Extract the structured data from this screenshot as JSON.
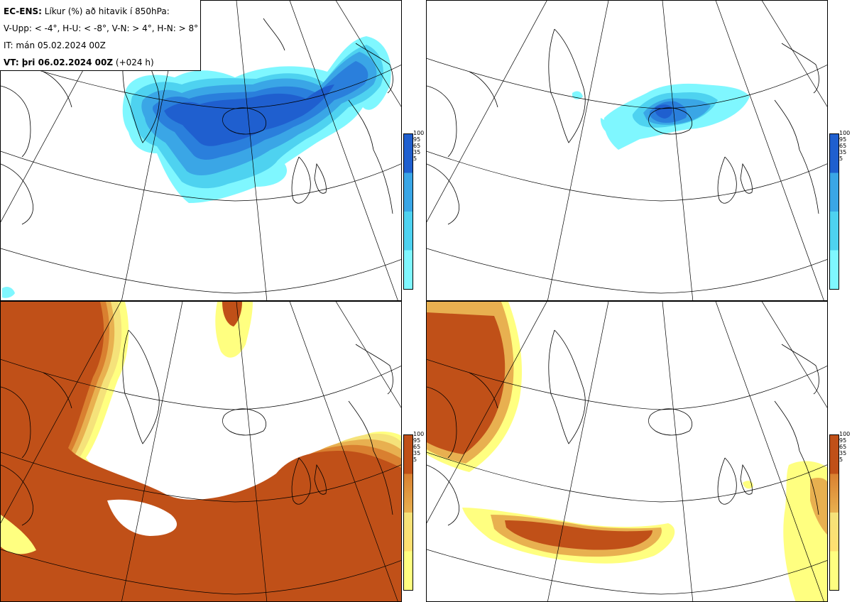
{
  "header": {
    "line1_bold": "EC-ENS:",
    "line1_rest": " Líkur (%) að hitavik í 850hPa:",
    "line2": "V-Upp: < -4°, H-U: < -8°, V-N: > 4°, H-N: > 8°",
    "line3": "IT: mán 05.02.2024 00Z",
    "line4_bold": "VT: þri 06.02.2024 00Z",
    "line4_rest": " (+024 h)"
  },
  "colorbar_ticks": [
    "100",
    "95",
    "65",
    "35",
    "5"
  ],
  "colors": {
    "cold_scale": [
      "#7ff7ff",
      "#4ed2f0",
      "#3aa6e6",
      "#2a7fdc",
      "#1f5fcf"
    ],
    "warm_scale": [
      "#ffff80",
      "#f5e27a",
      "#e8b050",
      "#d98030",
      "#c05018"
    ],
    "coast": "#000000",
    "grid": "#000000"
  },
  "panels": [
    {
      "id": "v-upp",
      "scale": "cold"
    },
    {
      "id": "h-u",
      "scale": "cold"
    },
    {
      "id": "v-n",
      "scale": "warm"
    },
    {
      "id": "h-n",
      "scale": "warm"
    }
  ]
}
